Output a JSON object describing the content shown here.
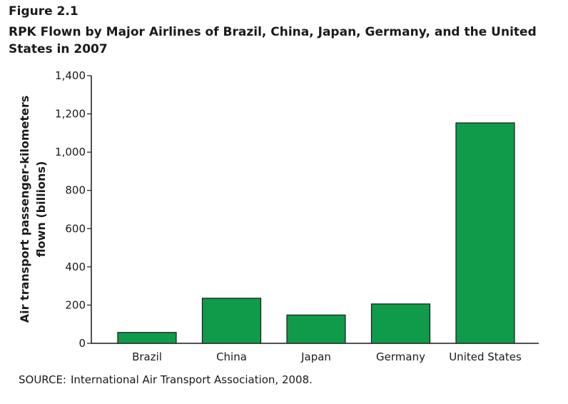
{
  "figure": {
    "label": "Figure 2.1",
    "title": "RPK Flown by Major Airlines of Brazil, China, Japan, Germany, and the United States in 2007"
  },
  "source": {
    "label": "SOURCE:",
    "text": "International Air Transport Association, 2008."
  },
  "colors": {
    "bar_fill": "#0f9b4a",
    "bar_stroke": "#1a1a1a",
    "axis": "#1a1a1a"
  },
  "chart_data": {
    "type": "bar",
    "title": "RPK Flown by Major Airlines of Brazil, China, Japan, Germany, and the United States in 2007",
    "xlabel": "",
    "ylabel": "Air transport passenger-kilometers flown (billions)",
    "ylabel_lines": [
      "Air transport passenger-kilometers",
      "flown (billions)"
    ],
    "categories": [
      "Brazil",
      "China",
      "Japan",
      "Germany",
      "United States"
    ],
    "values": [
      57,
      236,
      148,
      206,
      1153
    ],
    "ylim": [
      0,
      1400
    ],
    "yticks": [
      0,
      200,
      400,
      600,
      800,
      1000,
      1200,
      1400
    ],
    "ytick_labels": [
      "0",
      "200",
      "400",
      "600",
      "800",
      "1,000",
      "1,200",
      "1,400"
    ],
    "grid": false,
    "legend": "none"
  }
}
